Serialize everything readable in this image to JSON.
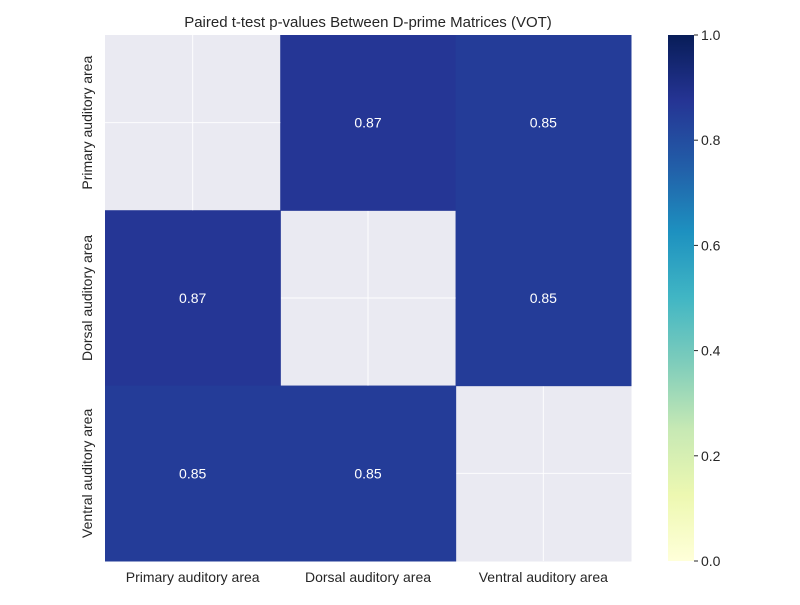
{
  "chart_data": {
    "type": "heatmap",
    "title": "Paired t-test p-values Between D-prime Matrices (VOT)",
    "xlabel": "",
    "ylabel": "",
    "categories_x": [
      "Primary auditory area",
      "Dorsal auditory area",
      "Ventral auditory area"
    ],
    "categories_y": [
      "Primary auditory area",
      "Dorsal auditory area",
      "Ventral auditory area"
    ],
    "values": [
      [
        null,
        0.87,
        0.85
      ],
      [
        0.87,
        null,
        0.85
      ],
      [
        0.85,
        0.85,
        null
      ]
    ],
    "cell_labels": [
      [
        null,
        "0.87",
        "0.85"
      ],
      [
        "0.87",
        null,
        "0.85"
      ],
      [
        "0.85",
        "0.85",
        null
      ]
    ],
    "masked_color": "#eaeaf2",
    "colormap": "YlGnBu",
    "colorbar": {
      "range": [
        0.0,
        1.0
      ],
      "ticks": [
        0.0,
        0.2,
        0.4,
        0.6,
        0.8,
        1.0
      ],
      "tick_labels": [
        "0.0",
        "0.2",
        "0.4",
        "0.6",
        "0.8",
        "1.0"
      ],
      "stops": [
        "#ffffd9",
        "#edf8b1",
        "#c7e9b4",
        "#7fcdbb",
        "#41b6c4",
        "#1d91c0",
        "#225ea8",
        "#253494",
        "#081d58"
      ]
    },
    "grid": true
  }
}
